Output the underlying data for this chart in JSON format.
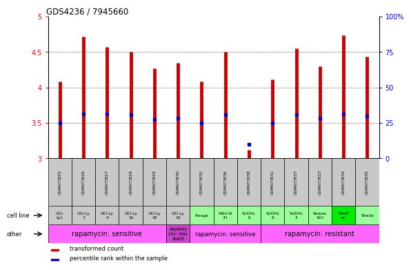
{
  "title": "GDS4236 / 7945660",
  "samples": [
    "GSM673825",
    "GSM673826",
    "GSM673827",
    "GSM673828",
    "GSM673829",
    "GSM673830",
    "GSM673832",
    "GSM673836",
    "GSM673838",
    "GSM673831",
    "GSM673837",
    "GSM673833",
    "GSM673834",
    "GSM673835"
  ],
  "transformed_count": [
    4.08,
    4.72,
    4.57,
    4.5,
    4.27,
    4.35,
    4.08,
    4.5,
    3.12,
    4.11,
    4.55,
    4.3,
    4.74,
    4.43
  ],
  "percentile_rank": [
    3.5,
    3.63,
    3.63,
    3.62,
    3.55,
    3.57,
    3.5,
    3.62,
    3.2,
    3.5,
    3.62,
    3.57,
    3.63,
    3.6
  ],
  "cell_lines": [
    "OCI-\nLy1",
    "OCI-Ly\n3",
    "OCI-Ly\n4",
    "OCI-Ly\n10",
    "OCI-Ly\n18",
    "OCI-Ly\n19",
    "Farage",
    "WSU-N\nIH",
    "SUDHL\n6",
    "SUDHL\n8",
    "SUDHL\n4",
    "Karpas\n422",
    "Pfeiff\ner",
    "Toledo"
  ],
  "cell_line_colors": [
    "#c8c8c8",
    "#c8c8c8",
    "#c8c8c8",
    "#c8c8c8",
    "#c8c8c8",
    "#c8c8c8",
    "#99ff99",
    "#99ff99",
    "#99ff99",
    "#99ff99",
    "#99ff99",
    "#99ff99",
    "#00ee00",
    "#99ff99"
  ],
  "other_groups": [
    {
      "label": "rapamycin: sensitive",
      "start": 0,
      "end": 5,
      "color": "#ff66ff",
      "fontsize": 7
    },
    {
      "label": "rapamy\ncin: resi\nstant",
      "start": 5,
      "end": 6,
      "color": "#cc44cc",
      "fontsize": 5
    },
    {
      "label": "rapamycin: sensitive",
      "start": 6,
      "end": 9,
      "color": "#ff66ff",
      "fontsize": 6
    },
    {
      "label": "rapamycin: resistant",
      "start": 9,
      "end": 14,
      "color": "#ff66ff",
      "fontsize": 7
    }
  ],
  "bar_color": "#cc0000",
  "dot_color": "#0000cc",
  "ylim": [
    3.0,
    5.0
  ],
  "y2lim": [
    0,
    100
  ],
  "yticks": [
    3.0,
    3.5,
    4.0,
    4.5,
    5.0
  ],
  "ytick_labels": [
    "3",
    "3.5",
    "4",
    "4.5",
    "5"
  ],
  "y2ticks": [
    0,
    25,
    50,
    75,
    100
  ],
  "y2ticklabels": [
    "0",
    "25",
    "50",
    "75",
    "100%"
  ]
}
